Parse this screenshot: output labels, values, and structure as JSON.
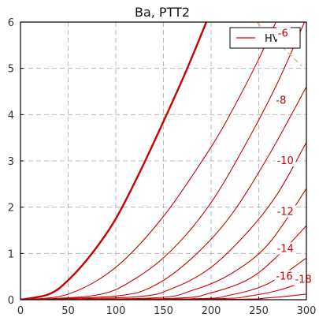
{
  "chart_data": {
    "type": "line",
    "title": "Ba, PTT2",
    "xlabel": "",
    "ylabel": "",
    "xlim": [
      0,
      300
    ],
    "ylim": [
      0,
      6
    ],
    "x_ticks": [
      "0",
      "50",
      "100",
      "150",
      "200",
      "250",
      "300"
    ],
    "y_ticks": [
      "0",
      "1",
      "2",
      "3",
      "4",
      "5",
      "6"
    ],
    "grid": true,
    "legend": {
      "position": "top-right",
      "entries": [
        {
          "label": "HV",
          "color": "#cc0000"
        }
      ]
    },
    "colors": {
      "curve": "#cc0000",
      "load_line": "#e8b070",
      "grid": "#aaaaaa"
    },
    "series": [
      {
        "label": "",
        "bold": true,
        "points": [
          [
            0,
            0
          ],
          [
            30,
            0.12
          ],
          [
            50,
            0.42
          ],
          [
            75,
            1.0
          ],
          [
            100,
            1.75
          ],
          [
            125,
            2.75
          ],
          [
            150,
            3.85
          ],
          [
            175,
            5.0
          ],
          [
            195,
            6.0
          ]
        ]
      },
      {
        "label": "",
        "bold": false,
        "points": [
          [
            0,
            0
          ],
          [
            50,
            0.12
          ],
          [
            100,
            0.7
          ],
          [
            150,
            1.8
          ],
          [
            200,
            3.3
          ],
          [
            225,
            4.2
          ],
          [
            250,
            5.2
          ],
          [
            268,
            6.0
          ]
        ]
      },
      {
        "label": "",
        "bold": false,
        "points": [
          [
            0,
            0
          ],
          [
            80,
            0.1
          ],
          [
            120,
            0.45
          ],
          [
            160,
            1.1
          ],
          [
            200,
            2.1
          ],
          [
            240,
            3.5
          ],
          [
            270,
            4.7
          ],
          [
            298,
            6.0
          ]
        ]
      },
      {
        "label": "-6",
        "bold": false,
        "points": [
          [
            0,
            0
          ],
          [
            100,
            0.08
          ],
          [
            140,
            0.3
          ],
          [
            180,
            0.9
          ],
          [
            220,
            1.8
          ],
          [
            260,
            3.1
          ],
          [
            300,
            4.6
          ]
        ]
      },
      {
        "label": "-8",
        "bold": false,
        "points": [
          [
            0,
            0
          ],
          [
            120,
            0.06
          ],
          [
            160,
            0.25
          ],
          [
            200,
            0.7
          ],
          [
            240,
            1.5
          ],
          [
            270,
            2.3
          ],
          [
            300,
            3.4
          ]
        ]
      },
      {
        "label": "-10",
        "bold": false,
        "points": [
          [
            0,
            0
          ],
          [
            140,
            0.04
          ],
          [
            180,
            0.2
          ],
          [
            220,
            0.55
          ],
          [
            260,
            1.2
          ],
          [
            300,
            2.4
          ]
        ]
      },
      {
        "label": "-12",
        "bold": false,
        "points": [
          [
            0,
            0
          ],
          [
            160,
            0.03
          ],
          [
            200,
            0.15
          ],
          [
            240,
            0.45
          ],
          [
            270,
            0.95
          ],
          [
            300,
            1.6
          ]
        ]
      },
      {
        "label": "-14",
        "bold": false,
        "points": [
          [
            0,
            0
          ],
          [
            180,
            0.02
          ],
          [
            220,
            0.1
          ],
          [
            260,
            0.35
          ],
          [
            300,
            0.9
          ]
        ]
      },
      {
        "label": "-16",
        "bold": false,
        "points": [
          [
            0,
            0
          ],
          [
            200,
            0.02
          ],
          [
            240,
            0.08
          ],
          [
            270,
            0.2
          ],
          [
            300,
            0.4
          ]
        ]
      },
      {
        "label": "-18",
        "bold": false,
        "points": [
          [
            0,
            0
          ],
          [
            220,
            0.01
          ],
          [
            260,
            0.04
          ],
          [
            300,
            0.12
          ]
        ]
      }
    ],
    "curve_labels": [
      {
        "text": "-6",
        "x": 280,
        "y": 5.7
      },
      {
        "text": "-8",
        "x": 278,
        "y": 4.25
      },
      {
        "text": "-10",
        "x": 279,
        "y": 2.95
      },
      {
        "text": "-12",
        "x": 279,
        "y": 1.85
      },
      {
        "text": "-14",
        "x": 279,
        "y": 1.05
      },
      {
        "text": "-16",
        "x": 278,
        "y": 0.45
      },
      {
        "text": "-18",
        "x": 298,
        "y": 0.38
      }
    ],
    "load_line": {
      "points": [
        [
          248,
          6.0
        ],
        [
          295,
          5.05
        ]
      ]
    }
  }
}
